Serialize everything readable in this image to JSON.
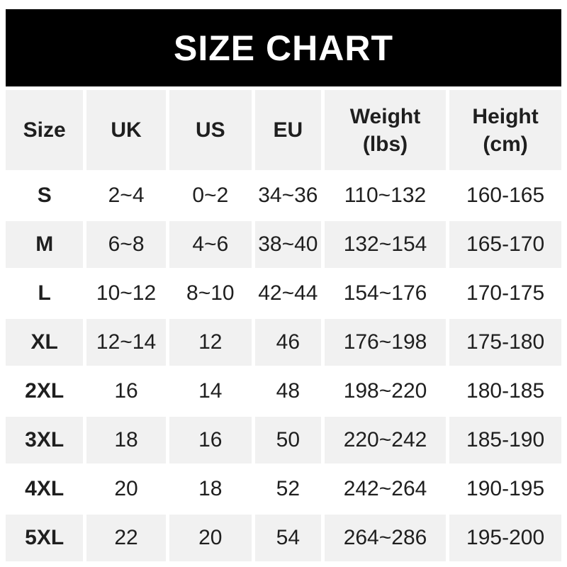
{
  "colors": {
    "page-bg": "#ffffff",
    "banner-bg": "#000000",
    "banner-text": "#ffffff",
    "row-alt-bg": "#f1f1f1",
    "text": "#1f1f1f"
  },
  "chart_data": {
    "type": "table",
    "title": "SIZE CHART",
    "columns": [
      {
        "label": "Size",
        "unit": ""
      },
      {
        "label": "UK",
        "unit": ""
      },
      {
        "label": "US",
        "unit": ""
      },
      {
        "label": "EU",
        "unit": ""
      },
      {
        "label": "Weight",
        "unit": "(lbs)"
      },
      {
        "label": "Height",
        "unit": "(cm)"
      }
    ],
    "rows": [
      [
        "S",
        "2~4",
        "0~2",
        "34~36",
        "110~132",
        "160-165"
      ],
      [
        "M",
        "6~8",
        "4~6",
        "38~40",
        "132~154",
        "165-170"
      ],
      [
        "L",
        "10~12",
        "8~10",
        "42~44",
        "154~176",
        "170-175"
      ],
      [
        "XL",
        "12~14",
        "12",
        "46",
        "176~198",
        "175-180"
      ],
      [
        "2XL",
        "16",
        "14",
        "48",
        "198~220",
        "180-185"
      ],
      [
        "3XL",
        "18",
        "16",
        "50",
        "220~242",
        "185-190"
      ],
      [
        "4XL",
        "20",
        "18",
        "52",
        "242~264",
        "190-195"
      ],
      [
        "5XL",
        "22",
        "20",
        "54",
        "264~286",
        "195-200"
      ]
    ]
  }
}
